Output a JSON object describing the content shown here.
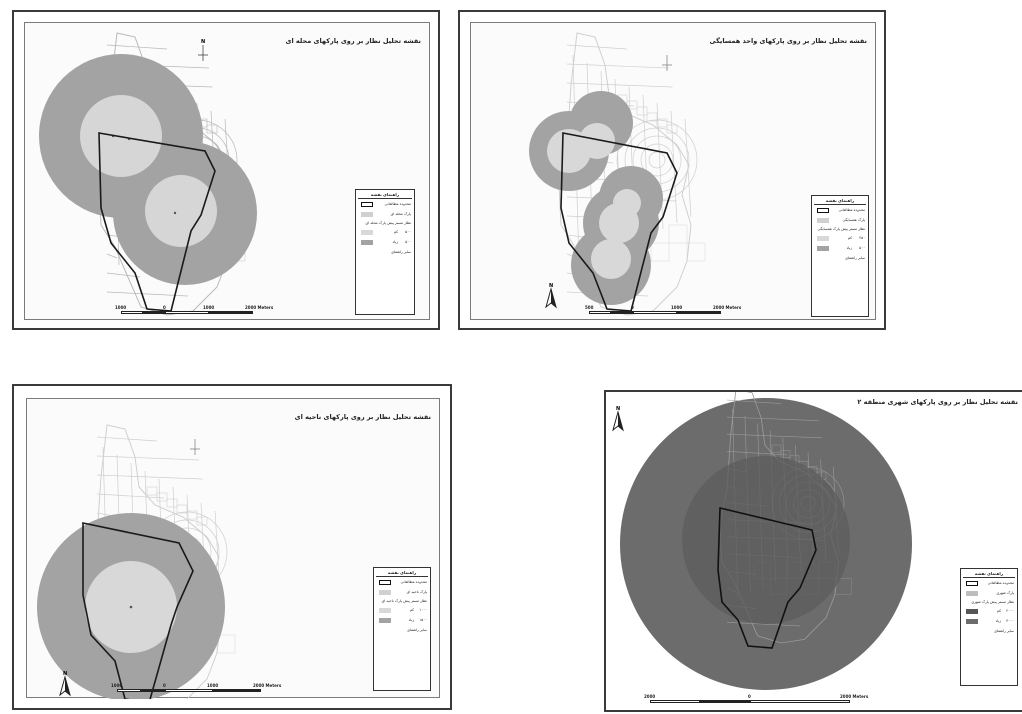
{
  "maps": [
    {
      "title": "نقشه تحلیل نظار بر روی پارکهای محله ای",
      "legend": {
        "title": "راهنمای نقشه",
        "items": [
          "محدوده مطالعاتی",
          "پارک محله ای",
          "نظار مستر پیش پارک محله ای",
          "کم",
          "۵۰۰",
          "زیاد",
          "۵۰۰",
          "سایر راهنمای"
        ]
      },
      "scale": [
        "1000",
        "0",
        "1000",
        "2000 Meters"
      ],
      "north": "N"
    },
    {
      "title": "نقشه تحلیل نظار بر روی پارکهای واحد همسایگی",
      "legend": {
        "title": "راهنمای نقشه",
        "items": [
          "محدوده مطالعاتی",
          "پارک همسایگی",
          "نظار مستر پیش پارک همسایگی",
          "کم",
          "۲۵۰",
          "زیاد",
          "۵۰۰",
          "سایر راهنمای"
        ]
      },
      "scale": [
        "500",
        "0",
        "1000",
        "2000 Meters"
      ],
      "north": "N"
    },
    {
      "title": "نقشه تحلیل نظار بر روی پارکهای ناحیه ای",
      "legend": {
        "title": "راهنمای نقشه",
        "items": [
          "محدوده مطالعاتی",
          "پارک ناحیه ای",
          "نظار مستر پیش پارک ناحیه ای",
          "کم",
          "۱۰۰۰",
          "زیاد",
          "۱۵۰۰",
          "سایر راهنمای"
        ]
      },
      "scale": [
        "1000",
        "0",
        "1000",
        "2000 Meters"
      ],
      "north": "N"
    },
    {
      "title": "نقشه تحلیل نظار بر روی پارکهای شهری منطقه ۲",
      "legend": {
        "title": "راهنمای نقشه",
        "items": [
          "محدوده مطالعاتی",
          "پارک شهری",
          "نظار مستر پیش پارک شهری",
          "کم",
          "۲۰۰۰",
          "زیاد",
          "۳۰۰۰",
          "سایر راهنمای"
        ]
      },
      "scale": [
        "2000",
        "0",
        "2000 Meters"
      ],
      "north": "N"
    }
  ],
  "colors": {
    "outer_buffer": "#a3a3a3",
    "inner_buffer": "#d8d8d8",
    "city_streets": "#c8c8c8",
    "study_boundary": "#1a1a1a",
    "map4_outer": "#6c6c6c",
    "map4_inner": "#5a5a5a"
  }
}
